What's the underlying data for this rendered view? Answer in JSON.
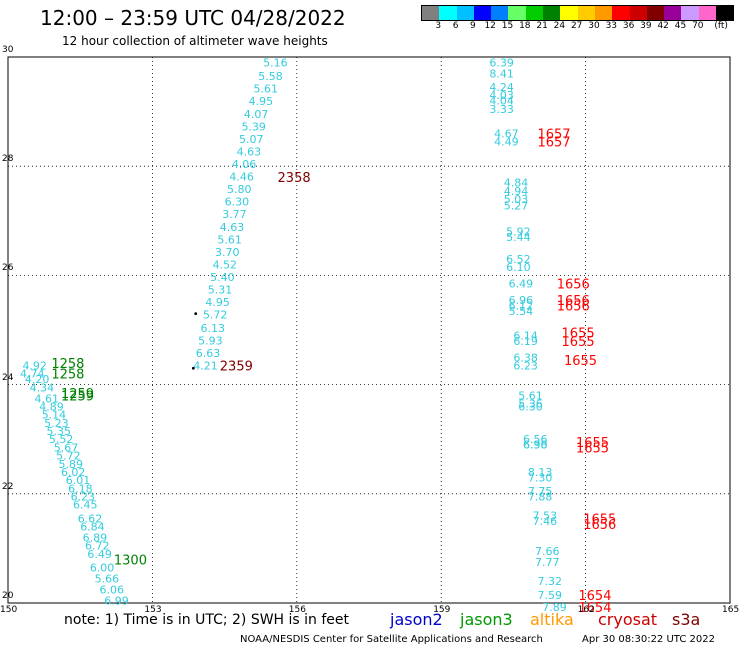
{
  "header": {
    "title": "12:00 – 23:59 UTC 04/28/2022",
    "subtitle": "12 hour collection of altimeter wave heights"
  },
  "scale": {
    "colors": [
      "#808080",
      "#00ffff",
      "#00c0ff",
      "#0000ff",
      "#0080ff",
      "#66ff66",
      "#00cc00",
      "#008000",
      "#ffff00",
      "#ffcc00",
      "#ff9900",
      "#ff0000",
      "#cc0000",
      "#800000",
      "#990099",
      "#cc99ff",
      "#ff66cc",
      "#000000"
    ],
    "labels": [
      "3",
      "6",
      "9",
      "12",
      "15",
      "18",
      "21",
      "24",
      "27",
      "30",
      "33",
      "36",
      "39",
      "42",
      "45",
      "70",
      "(ft)"
    ]
  },
  "map": {
    "lon_range": [
      150,
      165
    ],
    "lat_range": [
      20,
      30
    ],
    "x_ticks": [
      "150",
      "153",
      "156",
      "159",
      "162",
      "165"
    ],
    "y_ticks": [
      "20",
      "22",
      "24",
      "26",
      "28",
      "30"
    ],
    "grid": "dotted"
  },
  "tracks": [
    {
      "color": "#33ccdd",
      "points": [
        {
          "lon": 155.3,
          "lat": 29.9,
          "t": "5.16"
        },
        {
          "lon": 155.2,
          "lat": 29.65,
          "t": "5.58"
        },
        {
          "lon": 155.1,
          "lat": 29.42,
          "t": "5.61"
        },
        {
          "lon": 155.0,
          "lat": 29.19,
          "t": "4.95"
        },
        {
          "lon": 154.9,
          "lat": 28.96,
          "t": "4.07"
        },
        {
          "lon": 154.85,
          "lat": 28.73,
          "t": "5.39"
        },
        {
          "lon": 154.8,
          "lat": 28.5,
          "t": "5.07"
        },
        {
          "lon": 154.75,
          "lat": 28.27,
          "t": "4.63"
        },
        {
          "lon": 154.65,
          "lat": 28.04,
          "t": "4.06"
        },
        {
          "lon": 154.6,
          "lat": 27.81,
          "t": "4.46"
        },
        {
          "lon": 154.55,
          "lat": 27.58,
          "t": "5.80"
        },
        {
          "lon": 154.5,
          "lat": 27.35,
          "t": "6.30"
        },
        {
          "lon": 154.45,
          "lat": 27.12,
          "t": "3.77"
        },
        {
          "lon": 154.4,
          "lat": 26.89,
          "t": "4.63"
        },
        {
          "lon": 154.35,
          "lat": 26.66,
          "t": "5.61"
        },
        {
          "lon": 154.3,
          "lat": 26.43,
          "t": "3.70"
        },
        {
          "lon": 154.25,
          "lat": 26.2,
          "t": "4.52"
        },
        {
          "lon": 154.2,
          "lat": 25.97,
          "t": "5.40"
        },
        {
          "lon": 154.15,
          "lat": 25.74,
          "t": "5.31"
        },
        {
          "lon": 154.1,
          "lat": 25.51,
          "t": "4.95"
        },
        {
          "lon": 154.05,
          "lat": 25.28,
          "t": "5.72"
        },
        {
          "lon": 154.0,
          "lat": 25.04,
          "t": "6.13"
        },
        {
          "lon": 153.95,
          "lat": 24.81,
          "t": "5.93"
        },
        {
          "lon": 153.9,
          "lat": 24.58,
          "t": "6.63"
        },
        {
          "lon": 153.85,
          "lat": 24.35,
          "t": "4.21"
        }
      ]
    },
    {
      "color": "#33ccdd",
      "points": [
        {
          "lon": 160.0,
          "lat": 29.9,
          "t": "6.39"
        },
        {
          "lon": 160.0,
          "lat": 29.7,
          "t": "8.41"
        },
        {
          "lon": 160.0,
          "lat": 29.45,
          "t": "4.24"
        },
        {
          "lon": 160.0,
          "lat": 29.3,
          "t": "4.03"
        },
        {
          "lon": 160.0,
          "lat": 29.2,
          "t": "4.04"
        },
        {
          "lon": 160.0,
          "lat": 29.05,
          "t": "3.33"
        },
        {
          "lon": 160.1,
          "lat": 28.6,
          "t": "4.67"
        },
        {
          "lon": 160.1,
          "lat": 28.45,
          "t": "4.49"
        },
        {
          "lon": 160.3,
          "lat": 27.7,
          "t": "4.84"
        },
        {
          "lon": 160.3,
          "lat": 27.55,
          "t": "4.94"
        },
        {
          "lon": 160.3,
          "lat": 27.4,
          "t": "5.03"
        },
        {
          "lon": 160.3,
          "lat": 27.28,
          "t": "5.27"
        },
        {
          "lon": 160.35,
          "lat": 26.8,
          "t": "5.92"
        },
        {
          "lon": 160.35,
          "lat": 26.7,
          "t": "5.44"
        },
        {
          "lon": 160.35,
          "lat": 26.3,
          "t": "6.52"
        },
        {
          "lon": 160.35,
          "lat": 26.15,
          "t": "6.10"
        },
        {
          "lon": 160.4,
          "lat": 25.85,
          "t": "6.49"
        },
        {
          "lon": 160.4,
          "lat": 25.55,
          "t": "6.96"
        },
        {
          "lon": 160.4,
          "lat": 25.45,
          "t": "6.12"
        },
        {
          "lon": 160.4,
          "lat": 25.35,
          "t": "5.54"
        },
        {
          "lon": 160.5,
          "lat": 24.9,
          "t": "6.14"
        },
        {
          "lon": 160.5,
          "lat": 24.8,
          "t": "6.19"
        },
        {
          "lon": 160.5,
          "lat": 24.5,
          "t": "6.38"
        },
        {
          "lon": 160.5,
          "lat": 24.35,
          "t": "6.23"
        },
        {
          "lon": 160.6,
          "lat": 23.8,
          "t": "5.61"
        },
        {
          "lon": 160.6,
          "lat": 23.65,
          "t": "5.36"
        },
        {
          "lon": 160.6,
          "lat": 23.6,
          "t": "6.30"
        },
        {
          "lon": 160.7,
          "lat": 23.0,
          "t": "6.56"
        },
        {
          "lon": 160.7,
          "lat": 22.9,
          "t": "6.38"
        },
        {
          "lon": 160.7,
          "lat": 22.9,
          "t": "6.90"
        },
        {
          "lon": 160.8,
          "lat": 22.4,
          "t": "8.13"
        },
        {
          "lon": 160.8,
          "lat": 22.3,
          "t": "7.30"
        },
        {
          "lon": 160.8,
          "lat": 22.05,
          "t": "7.75"
        },
        {
          "lon": 160.8,
          "lat": 21.95,
          "t": "7.88"
        },
        {
          "lon": 160.9,
          "lat": 21.6,
          "t": "7.53"
        },
        {
          "lon": 160.9,
          "lat": 21.5,
          "t": "7.46"
        },
        {
          "lon": 160.95,
          "lat": 20.95,
          "t": "7.66"
        },
        {
          "lon": 160.95,
          "lat": 20.75,
          "t": "7.77"
        },
        {
          "lon": 161.0,
          "lat": 20.4,
          "t": "7.32"
        },
        {
          "lon": 161.0,
          "lat": 20.15,
          "t": "7.59"
        },
        {
          "lon": 161.1,
          "lat": 19.93,
          "t": "7.89"
        }
      ]
    },
    {
      "color": "#33ccdd",
      "points": [
        {
          "lon": 150.3,
          "lat": 24.35,
          "t": "4.92"
        },
        {
          "lon": 150.25,
          "lat": 24.2,
          "t": "4.74"
        },
        {
          "lon": 150.35,
          "lat": 24.1,
          "t": "4.20"
        },
        {
          "lon": 150.45,
          "lat": 23.95,
          "t": "4.34"
        },
        {
          "lon": 150.55,
          "lat": 23.75,
          "t": "4.61"
        },
        {
          "lon": 150.65,
          "lat": 23.6,
          "t": "4.89"
        },
        {
          "lon": 150.7,
          "lat": 23.45,
          "t": "5.14"
        },
        {
          "lon": 150.75,
          "lat": 23.3,
          "t": "5.23"
        },
        {
          "lon": 150.8,
          "lat": 23.15,
          "t": "5.35"
        },
        {
          "lon": 150.85,
          "lat": 23.0,
          "t": "5.52"
        },
        {
          "lon": 150.95,
          "lat": 22.85,
          "t": "5.67"
        },
        {
          "lon": 151.0,
          "lat": 22.7,
          "t": "5.72"
        },
        {
          "lon": 151.05,
          "lat": 22.55,
          "t": "5.89"
        },
        {
          "lon": 151.1,
          "lat": 22.4,
          "t": "6.02"
        },
        {
          "lon": 151.2,
          "lat": 22.25,
          "t": "6.01"
        },
        {
          "lon": 151.25,
          "lat": 22.1,
          "t": "6.18"
        },
        {
          "lon": 151.3,
          "lat": 21.95,
          "t": "6.23"
        },
        {
          "lon": 151.35,
          "lat": 21.8,
          "t": "6.45"
        },
        {
          "lon": 151.45,
          "lat": 21.55,
          "t": "6.62"
        },
        {
          "lon": 151.5,
          "lat": 21.4,
          "t": "6.84"
        },
        {
          "lon": 151.55,
          "lat": 21.2,
          "t": "6.89"
        },
        {
          "lon": 151.6,
          "lat": 21.05,
          "t": "6.72"
        },
        {
          "lon": 151.65,
          "lat": 20.9,
          "t": "6.49"
        },
        {
          "lon": 151.7,
          "lat": 20.65,
          "t": "6.00"
        },
        {
          "lon": 151.8,
          "lat": 20.45,
          "t": "5.66"
        },
        {
          "lon": 151.9,
          "lat": 20.25,
          "t": "6.06"
        },
        {
          "lon": 152.0,
          "lat": 20.05,
          "t": "6.99"
        }
      ]
    }
  ],
  "time_labels": [
    {
      "lon": 155.6,
      "lat": 27.8,
      "t": "2358",
      "color": "#800000"
    },
    {
      "lon": 154.4,
      "lat": 24.35,
      "t": "2359",
      "color": "#800000"
    },
    {
      "lon": 150.9,
      "lat": 24.4,
      "t": "1258",
      "color": "#008000"
    },
    {
      "lon": 150.9,
      "lat": 24.2,
      "t": "1258",
      "color": "#008000"
    },
    {
      "lon": 151.1,
      "lat": 23.85,
      "t": "1259",
      "color": "#008000"
    },
    {
      "lon": 151.1,
      "lat": 23.8,
      "t": "1259",
      "color": "#008000"
    },
    {
      "lon": 152.2,
      "lat": 20.8,
      "t": "1300",
      "color": "#008000"
    },
    {
      "lon": 161.0,
      "lat": 28.6,
      "t": "1657",
      "color": "#ff0000"
    },
    {
      "lon": 161.0,
      "lat": 28.45,
      "t": "1657",
      "color": "#ff0000"
    },
    {
      "lon": 161.4,
      "lat": 25.85,
      "t": "1656",
      "color": "#ff0000"
    },
    {
      "lon": 161.4,
      "lat": 25.55,
      "t": "1656",
      "color": "#ff0000"
    },
    {
      "lon": 161.4,
      "lat": 25.45,
      "t": "1656",
      "color": "#ff0000"
    },
    {
      "lon": 161.5,
      "lat": 24.95,
      "t": "1655",
      "color": "#ff0000"
    },
    {
      "lon": 161.5,
      "lat": 24.8,
      "t": "1655",
      "color": "#ff0000"
    },
    {
      "lon": 161.55,
      "lat": 24.45,
      "t": "1655",
      "color": "#ff0000"
    },
    {
      "lon": 161.8,
      "lat": 22.95,
      "t": "1655",
      "color": "#ff0000"
    },
    {
      "lon": 161.8,
      "lat": 22.85,
      "t": "1655",
      "color": "#ff0000"
    },
    {
      "lon": 161.95,
      "lat": 21.55,
      "t": "1655",
      "color": "#ff0000"
    },
    {
      "lon": 161.95,
      "lat": 21.45,
      "t": "1656",
      "color": "#ff0000"
    },
    {
      "lon": 161.85,
      "lat": 20.15,
      "t": "1654",
      "color": "#ff0000"
    },
    {
      "lon": 161.85,
      "lat": 19.93,
      "t": "1654",
      "color": "#ff0000"
    }
  ],
  "dots": [
    {
      "lon": 153.9,
      "lat": 25.3
    },
    {
      "lon": 153.85,
      "lat": 24.3
    }
  ],
  "footer": {
    "note": "note: 1) Time is in UTC; 2) SWH is in feet",
    "satellites": [
      {
        "name": "jason2",
        "color": "#0000cc"
      },
      {
        "name": "jason3",
        "color": "#009900"
      },
      {
        "name": "altika",
        "color": "#ff9900"
      },
      {
        "name": "cryosat",
        "color": "#cc0000"
      },
      {
        "name": "s3a",
        "color": "#800000"
      }
    ],
    "credit": "NOAA/NESDIS Center for Satellite Applications and Research",
    "timestamp": "Apr 30 08:30:22 UTC 2022"
  }
}
